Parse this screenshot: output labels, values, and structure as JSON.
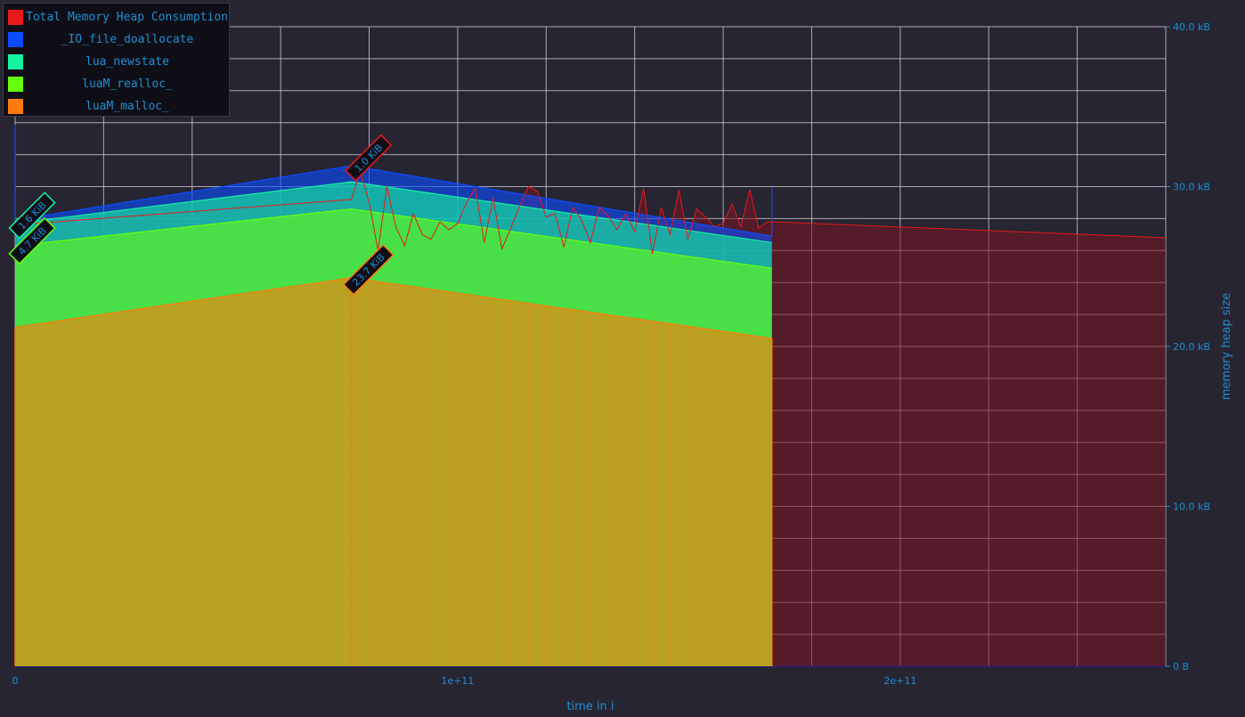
{
  "chart_data": {
    "type": "area",
    "xlabel": "time in i",
    "ylabel": "memory heap size",
    "x_ticks": [
      "0",
      "1e+11",
      "2e+11"
    ],
    "y_ticks": [
      "0 B",
      "10.0 kB",
      "20.0 kB",
      "30.0 kB",
      "40.0 kB"
    ],
    "xlim": [
      0,
      260000000000
    ],
    "ylim": [
      0,
      40000
    ],
    "grid": true,
    "legend_position": "top-left",
    "series": [
      {
        "name": "Total Memory Heap Consumption",
        "color": "#e8191c",
        "type": "line",
        "x": [
          0,
          76000000000,
          78000000000,
          80000000000,
          82000000000,
          84000000000,
          86000000000,
          88000000000,
          90000000000,
          92000000000,
          94000000000,
          96000000000,
          98000000000,
          100000000000,
          102000000000,
          104000000000,
          106000000000,
          108000000000,
          110000000000,
          112000000000,
          114000000000,
          116000000000,
          118000000000,
          120000000000,
          122000000000,
          124000000000,
          126000000000,
          128000000000,
          130000000000,
          132000000000,
          134000000000,
          136000000000,
          138000000000,
          140000000000,
          142000000000,
          144000000000,
          146000000000,
          148000000000,
          150000000000,
          152000000000,
          154000000000,
          156000000000,
          158000000000,
          160000000000,
          162000000000,
          164000000000,
          166000000000,
          168000000000,
          170000000000,
          171000000000,
          260000000000
        ],
        "values": [
          27600,
          29200,
          31000,
          29000,
          26000,
          30000,
          27500,
          26300,
          28300,
          27000,
          26700,
          27800,
          27300,
          27700,
          29000,
          29900,
          26500,
          29300,
          26100,
          27400,
          28800,
          30000,
          29700,
          28100,
          28300,
          26200,
          28700,
          27900,
          26500,
          28700,
          28200,
          27300,
          28300,
          27200,
          29900,
          25800,
          28700,
          27000,
          29800,
          26700,
          28600,
          28100,
          27500,
          27700,
          28900,
          27500,
          29800,
          27400,
          27800,
          27800,
          26800
        ]
      },
      {
        "name": "_IO_file_doallocate",
        "color": "#0b4cff",
        "x": [
          0,
          76000000000,
          171000000000
        ],
        "values": [
          27900,
          31300,
          26900
        ]
      },
      {
        "name": "lua_newstate",
        "color": "#14f3a0",
        "x": [
          0,
          76000000000,
          171000000000
        ],
        "values": [
          27700,
          30300,
          26500
        ]
      },
      {
        "name": "luaM_realloc_",
        "color": "#66ff0d",
        "x": [
          0,
          76000000000,
          171000000000
        ],
        "values": [
          26300,
          28600,
          24900
        ]
      },
      {
        "name": "luaM_malloc_",
        "color": "#ff7b0d",
        "x": [
          0,
          76000000000,
          171000000000
        ],
        "values": [
          21200,
          24300,
          20500
        ]
      }
    ],
    "annotations": [
      {
        "text": "1.0 KiB",
        "series": "_IO_file_doallocate",
        "x": 76000000000,
        "y": 31300,
        "color": "#0b4cff",
        "border": "#e8191c"
      },
      {
        "text": "1.6 KiB",
        "series": "lua_newstate",
        "x": 0,
        "y": 27700,
        "color": "#14f3a0",
        "border": "#14f3a0"
      },
      {
        "text": "4.7 KiB",
        "series": "luaM_realloc_",
        "x": 0,
        "y": 26100,
        "color": "#66ff0d",
        "border": "#66ff0d"
      },
      {
        "text": "23.7 KiB",
        "series": "luaM_malloc_",
        "x": 76000000000,
        "y": 24300,
        "color": "#ff7b0d",
        "border": "#ff7b0d"
      }
    ]
  },
  "legend": {
    "items": [
      {
        "label": "Total Memory Heap Consumption",
        "color": "#e8191c"
      },
      {
        "label": "_IO_file_doallocate",
        "color": "#0b4cff"
      },
      {
        "label": "lua_newstate",
        "color": "#14f3a0"
      },
      {
        "label": "luaM_realloc_",
        "color": "#66ff0d"
      },
      {
        "label": "luaM_malloc_",
        "color": "#ff7b0d"
      }
    ]
  }
}
